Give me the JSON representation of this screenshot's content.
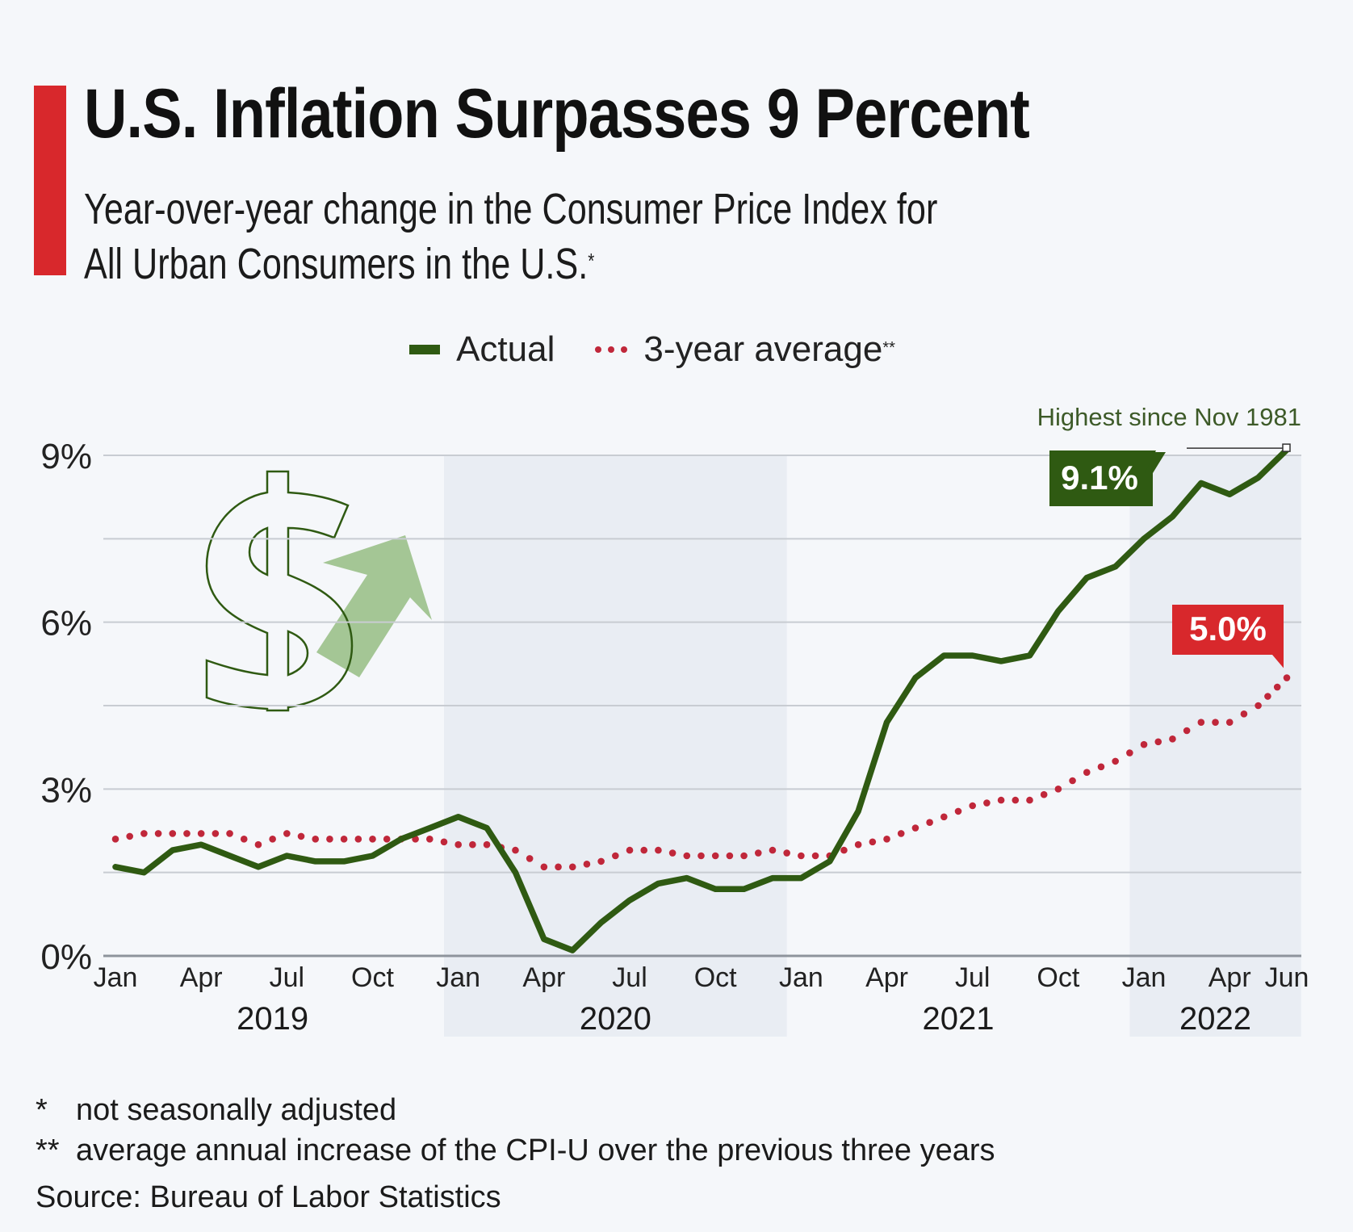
{
  "header": {
    "title": "U.S. Inflation Surpasses 9 Percent",
    "subtitle_line1": "Year-over-year change in the Consumer Price Index for",
    "subtitle_line2": "All Urban Consumers in the U.S.",
    "subtitle_mark": "*"
  },
  "legend": {
    "actual_label": "Actual",
    "avg_label": "3-year average",
    "avg_mark": "**"
  },
  "colors": {
    "accent": "#d8282c",
    "actual": "#2f5a12",
    "average": "#c0273a",
    "band": "#e9edf3",
    "grid": "#c8ccd2",
    "arrow": "#9bc08a"
  },
  "chart_data": {
    "type": "line",
    "title": "U.S. Inflation Surpasses 9 Percent",
    "subtitle": "Year-over-year change in the Consumer Price Index for All Urban Consumers in the U.S.*",
    "xlabel": "",
    "ylabel": "",
    "ylim": [
      0,
      9
    ],
    "y_ticks": [
      0,
      1.5,
      3,
      4.5,
      6,
      7.5,
      9
    ],
    "y_tick_labels": [
      "0%",
      "",
      "3%",
      "",
      "6%",
      "",
      "9%"
    ],
    "grid": true,
    "legend_position": "top-center",
    "x": [
      "2019-01",
      "2019-02",
      "2019-03",
      "2019-04",
      "2019-05",
      "2019-06",
      "2019-07",
      "2019-08",
      "2019-09",
      "2019-10",
      "2019-11",
      "2019-12",
      "2020-01",
      "2020-02",
      "2020-03",
      "2020-04",
      "2020-05",
      "2020-06",
      "2020-07",
      "2020-08",
      "2020-09",
      "2020-10",
      "2020-11",
      "2020-12",
      "2021-01",
      "2021-02",
      "2021-03",
      "2021-04",
      "2021-05",
      "2021-06",
      "2021-07",
      "2021-08",
      "2021-09",
      "2021-10",
      "2021-11",
      "2021-12",
      "2022-01",
      "2022-02",
      "2022-03",
      "2022-04",
      "2022-05",
      "2022-06"
    ],
    "x_ticks": [
      {
        "index": 0,
        "label": "Jan"
      },
      {
        "index": 3,
        "label": "Apr"
      },
      {
        "index": 6,
        "label": "Jul"
      },
      {
        "index": 9,
        "label": "Oct"
      },
      {
        "index": 12,
        "label": "Jan"
      },
      {
        "index": 15,
        "label": "Apr"
      },
      {
        "index": 18,
        "label": "Jul"
      },
      {
        "index": 21,
        "label": "Oct"
      },
      {
        "index": 24,
        "label": "Jan"
      },
      {
        "index": 27,
        "label": "Apr"
      },
      {
        "index": 30,
        "label": "Jul"
      },
      {
        "index": 33,
        "label": "Oct"
      },
      {
        "index": 36,
        "label": "Jan"
      },
      {
        "index": 39,
        "label": "Apr"
      },
      {
        "index": 41,
        "label": "Jun"
      }
    ],
    "years": [
      {
        "label": "2019",
        "start": 0,
        "end": 12,
        "shaded": false
      },
      {
        "label": "2020",
        "start": 12,
        "end": 24,
        "shaded": true
      },
      {
        "label": "2021",
        "start": 24,
        "end": 36,
        "shaded": false
      },
      {
        "label": "2022",
        "start": 36,
        "end": 42,
        "shaded": true
      }
    ],
    "series": [
      {
        "name": "Actual",
        "style": "solid",
        "values": [
          1.6,
          1.5,
          1.9,
          2.0,
          1.8,
          1.6,
          1.8,
          1.7,
          1.7,
          1.8,
          2.1,
          2.3,
          2.5,
          2.3,
          1.5,
          0.3,
          0.1,
          0.6,
          1.0,
          1.3,
          1.4,
          1.2,
          1.2,
          1.4,
          1.4,
          1.7,
          2.6,
          4.2,
          5.0,
          5.4,
          5.4,
          5.3,
          5.4,
          6.2,
          6.8,
          7.0,
          7.5,
          7.9,
          8.5,
          8.3,
          8.6,
          9.1
        ]
      },
      {
        "name": "3-year average",
        "style": "dotted",
        "values": [
          2.1,
          2.2,
          2.2,
          2.2,
          2.2,
          2.0,
          2.2,
          2.1,
          2.1,
          2.1,
          2.1,
          2.1,
          2.0,
          2.0,
          1.9,
          1.6,
          1.6,
          1.7,
          1.9,
          1.9,
          1.8,
          1.8,
          1.8,
          1.9,
          1.8,
          1.8,
          2.0,
          2.1,
          2.3,
          2.5,
          2.7,
          2.8,
          2.8,
          3.0,
          3.3,
          3.5,
          3.8,
          3.9,
          4.2,
          4.2,
          4.5,
          5.0
        ]
      }
    ],
    "annotations": [
      {
        "text": "Highest since Nov 1981",
        "series": "Actual",
        "index": 41
      },
      {
        "text": "9.1%",
        "series": "Actual",
        "index": 41
      },
      {
        "text": "5.0%",
        "series": "3-year average",
        "index": 41
      }
    ]
  },
  "footnotes": [
    {
      "mark": "*",
      "text": "not seasonally adjusted"
    },
    {
      "mark": "**",
      "text": "average annual increase of the CPI-U over the previous three years"
    }
  ],
  "source": "Source: Bureau of Labor Statistics",
  "illustration": {
    "icon_1": "dollar-sign-icon",
    "icon_2": "arrow-up-right-icon"
  }
}
